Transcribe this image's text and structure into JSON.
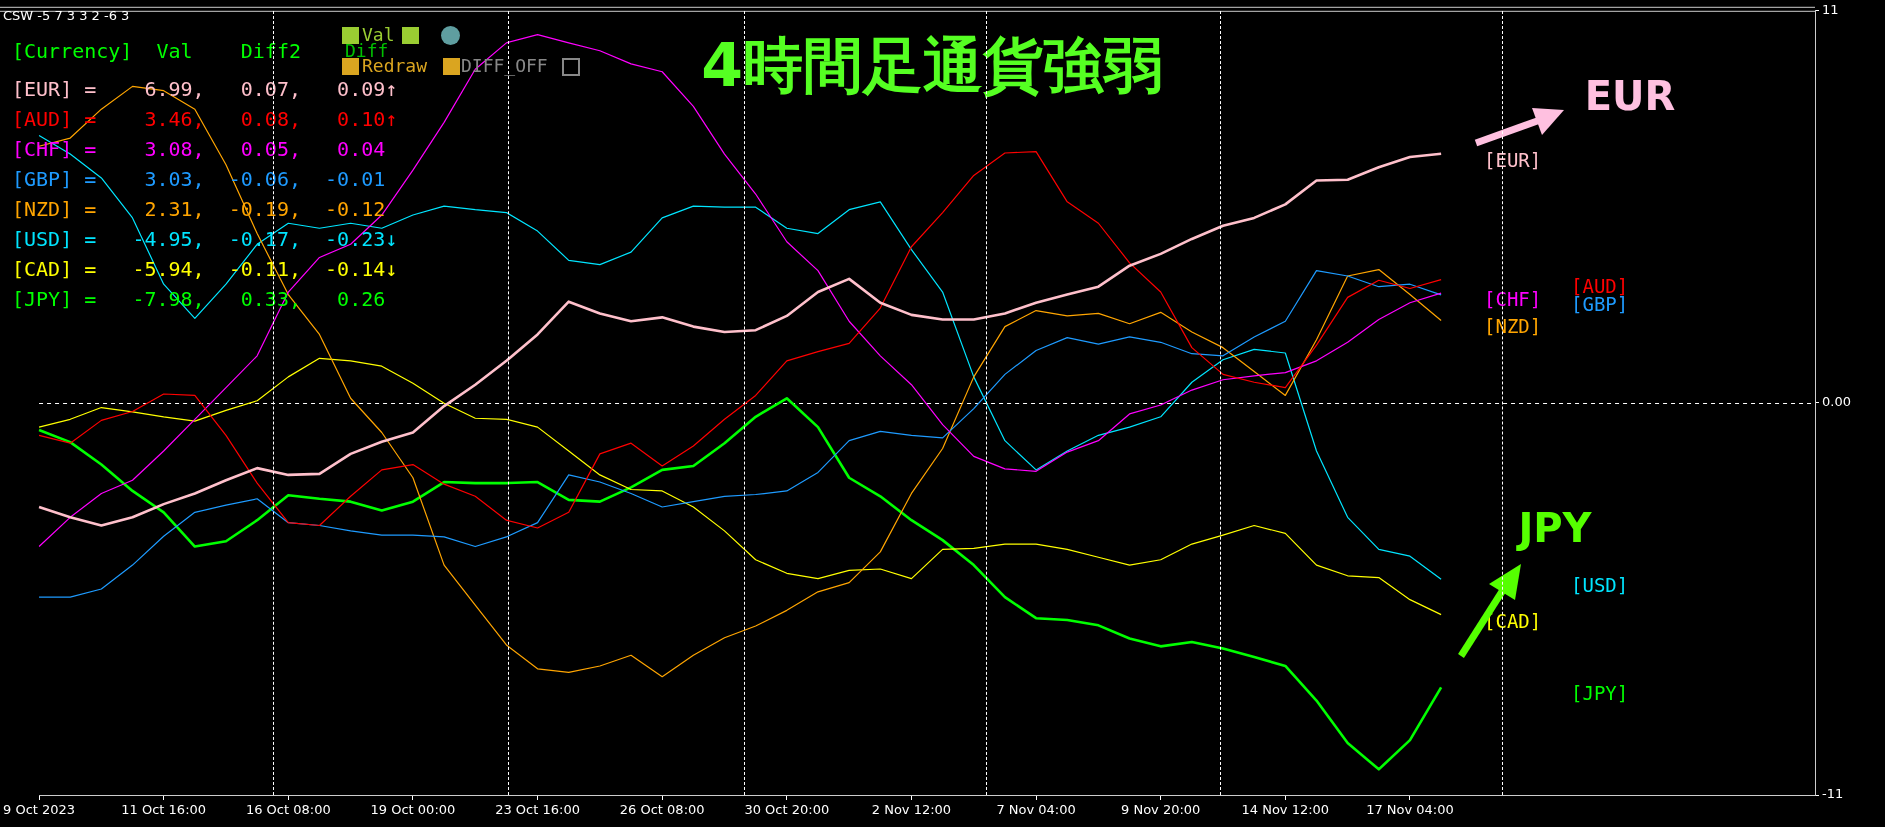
{
  "chart_data": {
    "type": "line",
    "title": "4時間足通貨強弱",
    "categories": [
      "9 Oct 2023",
      null,
      null,
      null,
      "11 Oct 16:00",
      null,
      null,
      null,
      "16 Oct 08:00",
      null,
      null,
      null,
      "19 Oct 00:00",
      null,
      null,
      null,
      "23 Oct 16:00",
      null,
      null,
      null,
      "26 Oct 08:00",
      null,
      null,
      null,
      "30 Oct 20:00",
      null,
      null,
      null,
      "2 Nov 12:00",
      null,
      null,
      null,
      "7 Nov 04:00",
      null,
      null,
      null,
      "9 Nov 20:00",
      null,
      null,
      null,
      "14 Nov 12:00",
      null,
      null,
      null,
      "17 Nov 04:00",
      null,
      null,
      null,
      null,
      null,
      null,
      null,
      null,
      null,
      null,
      null,
      null,
      null
    ],
    "series": [
      {
        "name": "[EUR]",
        "color": "#ffc0cb",
        "values": [
          -2.92,
          -3.21,
          -3.44,
          -3.21,
          -2.84,
          -2.54,
          -2.17,
          -1.83,
          -2.02,
          -1.99,
          -1.43,
          -1.09,
          -0.83,
          -0.09,
          0.51,
          1.18,
          1.92,
          2.84,
          2.51,
          2.29,
          2.4,
          2.14,
          1.99,
          2.04,
          2.44,
          3.11,
          3.48,
          2.81,
          2.47,
          2.34,
          2.34,
          2.51,
          2.81,
          3.04,
          3.26,
          3.85,
          4.18,
          4.6,
          4.97,
          5.19,
          5.57,
          6.24,
          6.26,
          6.61,
          6.9,
          6.99,
          null,
          null,
          null,
          null,
          null,
          null,
          null,
          null,
          null,
          null,
          null,
          null
        ]
      },
      {
        "name": "[AUD]",
        "color": "#ff0000",
        "values": [
          -0.91,
          -1.13,
          -0.49,
          -0.24,
          0.25,
          0.21,
          -0.91,
          -2.25,
          -3.36,
          -3.44,
          -2.62,
          -1.88,
          -1.73,
          -2.28,
          -2.62,
          -3.29,
          -3.51,
          -3.07,
          -1.43,
          -1.13,
          -1.77,
          -1.21,
          -0.46,
          0.21,
          1.18,
          1.44,
          1.67,
          2.66,
          4.38,
          5.34,
          6.38,
          7.01,
          7.05,
          5.64,
          5.04,
          3.93,
          3.11,
          1.55,
          0.8,
          0.58,
          0.43,
          1.62,
          2.96,
          3.44,
          3.21,
          3.46,
          null,
          null,
          null,
          null,
          null,
          null,
          null,
          null,
          null,
          null,
          null,
          null
        ]
      },
      {
        "name": "[CHF]",
        "color": "#ff00ff",
        "values": [
          -4.03,
          -3.21,
          -2.54,
          -2.17,
          -1.35,
          -0.46,
          0.43,
          1.32,
          3.11,
          4.08,
          4.45,
          5.27,
          6.53,
          7.87,
          9.36,
          10.1,
          10.33,
          10.1,
          9.88,
          9.51,
          9.29,
          8.32,
          6.98,
          5.86,
          4.52,
          3.71,
          2.29,
          1.32,
          0.51,
          -0.61,
          -1.5,
          -1.85,
          -1.92,
          -1.38,
          -1.06,
          -0.31,
          -0.06,
          0.36,
          0.65,
          0.76,
          0.85,
          1.18,
          1.7,
          2.34,
          2.81,
          3.08,
          null,
          null,
          null,
          null,
          null,
          null,
          null,
          null,
          null,
          null,
          null,
          null
        ]
      },
      {
        "name": "[GBP]",
        "color": "#1e9bff",
        "values": [
          -5.45,
          -5.45,
          -5.22,
          -4.55,
          -3.74,
          -3.07,
          -2.87,
          -2.69,
          -3.36,
          -3.44,
          -3.59,
          -3.71,
          -3.71,
          -3.76,
          -4.03,
          -3.76,
          -3.36,
          -2.02,
          -2.22,
          -2.54,
          -2.92,
          -2.77,
          -2.62,
          -2.57,
          -2.47,
          -1.95,
          -1.06,
          -0.8,
          -0.91,
          -0.98,
          -0.16,
          0.8,
          1.47,
          1.83,
          1.65,
          1.85,
          1.7,
          1.38,
          1.32,
          1.85,
          2.29,
          3.71,
          3.56,
          3.26,
          3.33,
          3.03,
          null,
          null,
          null,
          null,
          null,
          null,
          null,
          null,
          null,
          null,
          null,
          null
        ]
      },
      {
        "name": "[NZD]",
        "color": "#ffa500",
        "values": [
          7.2,
          7.43,
          8.24,
          8.88,
          8.76,
          8.24,
          6.68,
          4.75,
          3.04,
          1.92,
          0.13,
          -0.83,
          -2.1,
          -4.55,
          -5.67,
          -6.79,
          -7.46,
          -7.56,
          -7.38,
          -7.08,
          -7.68,
          -7.08,
          -6.59,
          -6.26,
          -5.82,
          -5.3,
          -5.04,
          -4.18,
          -2.54,
          -1.28,
          0.73,
          2.14,
          2.59,
          2.44,
          2.51,
          2.22,
          2.54,
          1.99,
          1.55,
          0.88,
          0.21,
          1.77,
          3.56,
          3.74,
          3.04,
          2.31,
          null,
          null,
          null,
          null,
          null,
          null,
          null,
          null,
          null,
          null,
          null,
          null
        ]
      },
      {
        "name": "[USD]",
        "color": "#00e5ff",
        "values": [
          7.5,
          6.98,
          6.31,
          5.19,
          3.33,
          2.37,
          3.33,
          4.45,
          5.04,
          4.9,
          5.04,
          4.9,
          5.27,
          5.52,
          5.42,
          5.34,
          4.82,
          4.0,
          3.88,
          4.23,
          5.19,
          5.52,
          5.49,
          5.49,
          4.9,
          4.75,
          5.42,
          5.64,
          4.3,
          3.11,
          0.73,
          -1.06,
          -1.88,
          -1.35,
          -0.91,
          -0.68,
          -0.39,
          0.58,
          1.21,
          1.5,
          1.4,
          -1.35,
          -3.21,
          -4.11,
          -4.3,
          -4.95,
          null,
          null,
          null,
          null,
          null,
          null,
          null,
          null,
          null,
          null,
          null,
          null
        ]
      },
      {
        "name": "[CAD]",
        "color": "#ffff00",
        "values": [
          -0.68,
          -0.46,
          -0.13,
          -0.25,
          -0.39,
          -0.51,
          -0.21,
          0.06,
          0.73,
          1.25,
          1.18,
          1.03,
          0.55,
          -0.01,
          -0.43,
          -0.46,
          -0.68,
          -1.35,
          -2.02,
          -2.43,
          -2.47,
          -2.92,
          -3.59,
          -4.4,
          -4.78,
          -4.93,
          -4.7,
          -4.66,
          -4.93,
          -4.11,
          -4.08,
          -3.96,
          -3.96,
          -4.11,
          -4.33,
          -4.55,
          -4.4,
          -3.96,
          -3.71,
          -3.44,
          -3.66,
          -4.55,
          -4.85,
          -4.9,
          -5.52,
          -5.94,
          null,
          null,
          null,
          null,
          null,
          null,
          null,
          null,
          null,
          null,
          null,
          null
        ]
      },
      {
        "name": "[JPY]",
        "color": "#00ff00",
        "values": [
          -0.76,
          -1.1,
          -1.73,
          -2.47,
          -3.07,
          -4.03,
          -3.88,
          -3.29,
          -2.59,
          -2.69,
          -2.77,
          -3.02,
          -2.77,
          -2.22,
          -2.25,
          -2.25,
          -2.22,
          -2.72,
          -2.77,
          -2.37,
          -1.88,
          -1.77,
          -1.13,
          -0.39,
          0.13,
          -0.68,
          -2.1,
          -2.62,
          -3.29,
          -3.85,
          -4.55,
          -5.45,
          -6.04,
          -6.09,
          -6.24,
          -6.61,
          -6.83,
          -6.71,
          -6.89,
          -7.13,
          -7.38,
          -8.35,
          -9.54,
          -10.28,
          -9.46,
          -7.98,
          null,
          null,
          null,
          null,
          null,
          null,
          null,
          null,
          null,
          null,
          null,
          null
        ]
      }
    ],
    "ylim": [
      -11,
      11
    ],
    "yticks": [
      -11,
      {
        "value": 0,
        "label": "0.00"
      },
      11
    ],
    "ref_lines": [
      {
        "axis": "y",
        "value": 0,
        "color": "#ffffff",
        "line_style": "dashed"
      }
    ],
    "annotations": [
      "CSW -5 7 3 3 2 -6 3",
      "[Currency]  Val    Diff2",
      "[EUR] =    6.99,   0.07,   0.09↑",
      "[AUD] =    3.46,   0.08,   0.10↑",
      "[CHF] =    3.08,   0.05,   0.04",
      "[GBP] =    3.03,  -0.06,  -0.01",
      "[NZD] =    2.31,  -0.19,  -0.12",
      "[USD] =   -4.95,  -0.17,  -0.23↓",
      "[CAD] =   -5.94,  -0.11,  -0.14↓",
      "[JPY] =   -7.98,   0.33,   0.26",
      "Val",
      "Diff",
      "Redraw",
      "DIFF_OFF",
      "EUR",
      "JPY"
    ],
    "grid": "x",
    "legend": false,
    "marker": "none",
    "line_style": "solid"
  }
}
